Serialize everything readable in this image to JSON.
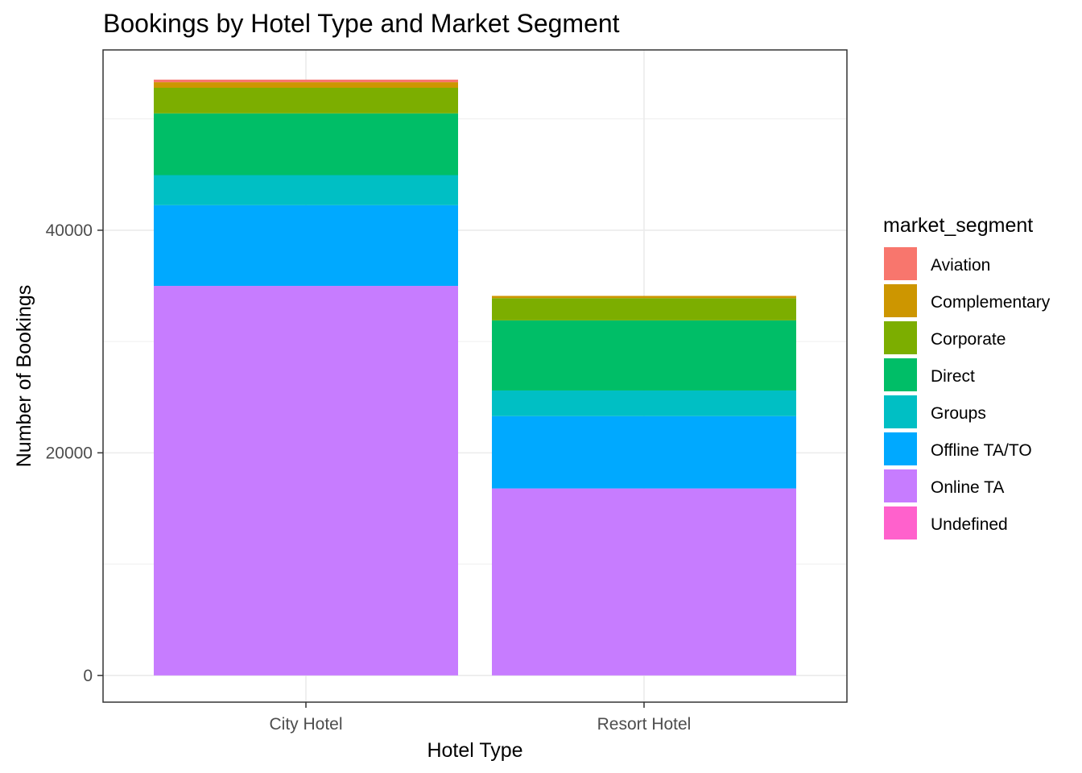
{
  "chart_data": {
    "type": "bar",
    "stacked": true,
    "title": "Bookings by Hotel Type and Market Segment",
    "xlabel": "Hotel Type",
    "ylabel": "Number of Bookings",
    "categories": [
      "City Hotel",
      "Resort Hotel"
    ],
    "ylim": [
      -2400,
      56200
    ],
    "yticks": [
      0,
      20000,
      40000
    ],
    "grid": true,
    "legend": {
      "title": "market_segment",
      "position": "right"
    },
    "series": [
      {
        "name": "Online TA",
        "color": "#C77CFF",
        "values": [
          35000,
          16800
        ]
      },
      {
        "name": "Offline TA/TO",
        "color": "#00A9FF",
        "values": [
          7250,
          6500
        ]
      },
      {
        "name": "Groups",
        "color": "#00BFC4",
        "values": [
          2700,
          2300
        ]
      },
      {
        "name": "Direct",
        "color": "#00BE67",
        "values": [
          5550,
          6300
        ]
      },
      {
        "name": "Corporate",
        "color": "#7CAE00",
        "values": [
          2300,
          2000
        ]
      },
      {
        "name": "Complementary",
        "color": "#CD9600",
        "values": [
          500,
          200
        ]
      },
      {
        "name": "Aviation",
        "color": "#F8766D",
        "values": [
          230,
          0
        ]
      },
      {
        "name": "Undefined",
        "color": "#FF61CC",
        "values": [
          2,
          0
        ]
      }
    ],
    "legend_order": [
      "Aviation",
      "Complementary",
      "Corporate",
      "Direct",
      "Groups",
      "Offline TA/TO",
      "Online TA",
      "Undefined"
    ]
  }
}
